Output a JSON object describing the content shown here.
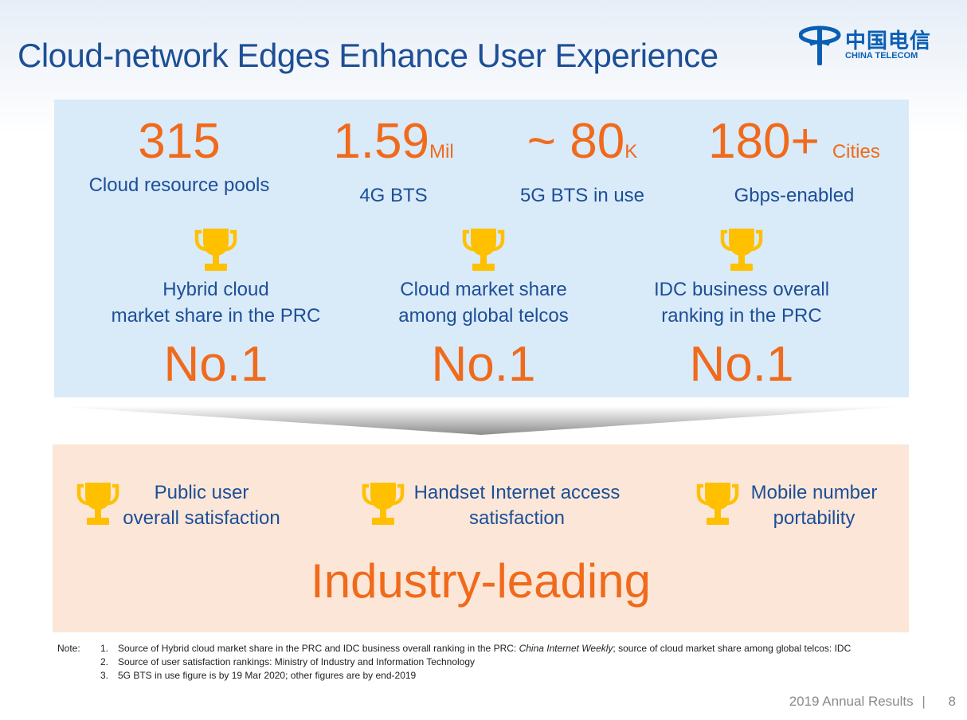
{
  "header": {
    "title": "Cloud-network Edges Enhance User Experience",
    "logo": {
      "name_cn": "中国电信",
      "name_en": "CHINA TELECOM",
      "icon": "china-telecom-logo-icon"
    }
  },
  "stats": [
    {
      "value": "315",
      "unit": "",
      "label": "Cloud resource pools"
    },
    {
      "value": "1.59",
      "unit": "Mil",
      "label": "4G BTS"
    },
    {
      "value": "~ 80",
      "unit": "K",
      "label": "5G BTS in use"
    },
    {
      "value": "180+",
      "unit": "Cities",
      "label": "Gbps-enabled"
    }
  ],
  "awards": [
    {
      "label_line1": "Hybrid cloud",
      "label_line2": "market share in the PRC",
      "rank": "No.1"
    },
    {
      "label_line1": "Cloud market share",
      "label_line2": "among global telcos",
      "rank": "No.1"
    },
    {
      "label_line1": "IDC business overall",
      "label_line2": "ranking in the PRC",
      "rank": "No.1"
    }
  ],
  "satisfaction": {
    "items": [
      {
        "line1": "Public user",
        "line2": "overall satisfaction"
      },
      {
        "line1": "Handset Internet access",
        "line2": "satisfaction"
      },
      {
        "line1": "Mobile number",
        "line2": "portability"
      }
    ],
    "banner": "Industry-leading"
  },
  "notes": {
    "tag": "Note:",
    "items": [
      {
        "num": "1.",
        "text_before": "Source of Hybrid cloud market share in the PRC and IDC business overall ranking in the PRC: ",
        "text_italic": "China Internet Weekly",
        "text_after": ";  source of cloud market share among global telcos: IDC"
      },
      {
        "num": "2.",
        "text": "Source of user satisfaction rankings: Ministry of Industry and Information Technology"
      },
      {
        "num": "3.",
        "text": "5G BTS in use figure is by 19 Mar 2020; other figures are by end-2019"
      }
    ]
  },
  "footer": {
    "report": "2019 Annual Results",
    "separator": "|",
    "page": "8"
  },
  "colors": {
    "title_blue": "#1d4f96",
    "accent_orange": "#f06a1b",
    "trophy_gold": "#ffc000",
    "panel_blue": "#d9eaf9",
    "panel_peach": "#fbe6d8"
  }
}
